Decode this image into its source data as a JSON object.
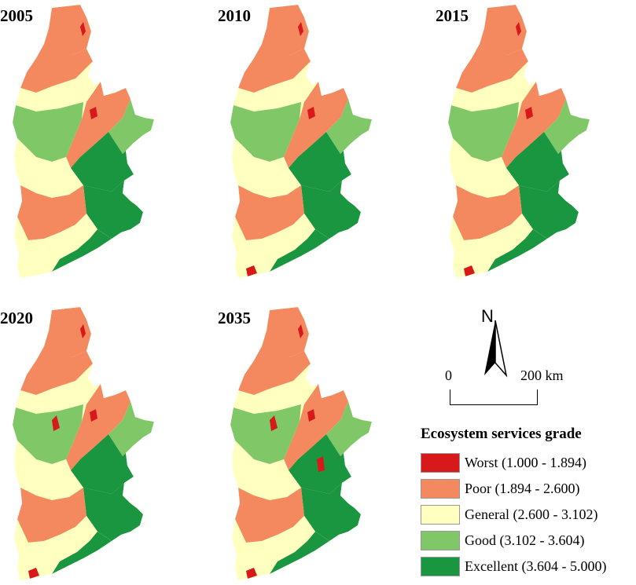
{
  "panels": [
    {
      "year": "2005",
      "degraded_index": 0
    },
    {
      "year": "2010",
      "degraded_index": 1
    },
    {
      "year": "2015",
      "degraded_index": 1
    },
    {
      "year": "2020",
      "degraded_index": 2
    },
    {
      "year": "2035",
      "degraded_index": 3
    }
  ],
  "north_arrow": {
    "letter": "N"
  },
  "scale_bar": {
    "zero": "0",
    "max": "200 km"
  },
  "legend": {
    "title": "Ecosystem services grade",
    "items": [
      {
        "label": "Worst (1.000 - 1.894)",
        "color": "#d7191c"
      },
      {
        "label": "Poor (1.894 - 2.600)",
        "color": "#f4895f"
      },
      {
        "label": "General (2.600 - 3.102)",
        "color": "#ffffbf"
      },
      {
        "label": "Good (3.102 - 3.604)",
        "color": "#80c768"
      },
      {
        "label": "Excellent (3.604 - 5.000)",
        "color": "#1a9641"
      }
    ]
  }
}
